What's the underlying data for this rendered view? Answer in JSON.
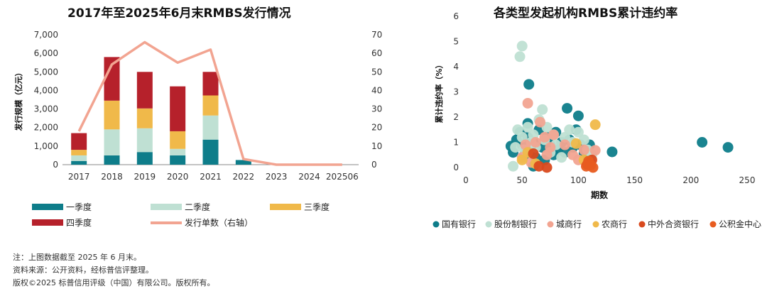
{
  "chart_data": [
    {
      "type": "bar",
      "title": "2017年至2025年6月末RMBS发行情况",
      "ylabel": "发行规模（亿元）",
      "y2label": "发行单数",
      "ylim": [
        0,
        7000
      ],
      "y2lim": [
        0,
        70
      ],
      "y_ticks": [
        "0",
        "1,000",
        "2,000",
        "3,000",
        "4,000",
        "5,000",
        "6,000",
        "7,000"
      ],
      "y2_ticks": [
        "0",
        "10",
        "20",
        "30",
        "40",
        "50",
        "60",
        "70"
      ],
      "categories": [
        "2017",
        "2018",
        "2019",
        "2020",
        "2021",
        "2022",
        "2023",
        "2024",
        "202506"
      ],
      "stacked": true,
      "series": [
        {
          "name": "一季度",
          "color": "#0e7d8a",
          "values": [
            200,
            500,
            680,
            500,
            1350,
            250,
            0,
            0,
            0
          ]
        },
        {
          "name": "二季度",
          "color": "#bfe0d3",
          "values": [
            300,
            1400,
            1280,
            350,
            1300,
            0,
            0,
            0,
            0
          ]
        },
        {
          "name": "三季度",
          "color": "#f0b94a",
          "values": [
            300,
            1550,
            1070,
            950,
            1080,
            0,
            0,
            0,
            0
          ]
        },
        {
          "name": "四季度",
          "color": "#b6212b",
          "values": [
            900,
            2350,
            1970,
            2420,
            1270,
            0,
            0,
            0,
            0
          ]
        }
      ],
      "line_series": {
        "name": "发行单数（右轴）",
        "color": "#f2a491",
        "axis": "right",
        "values": [
          18,
          54,
          66,
          55,
          62,
          3,
          0,
          0,
          0
        ]
      },
      "legend_placement": "bottom"
    },
    {
      "type": "scatter",
      "title": "各类型发起机构RMBS累计违约率",
      "xlabel": "期数",
      "ylabel": "累计违约率（%）",
      "xlim": [
        0,
        250
      ],
      "ylim": [
        0,
        6
      ],
      "x_ticks": [
        "0",
        "50",
        "100",
        "150",
        "200",
        "250"
      ],
      "y_ticks": [
        "0",
        "1",
        "2",
        "3",
        "4",
        "5",
        "6"
      ],
      "series": [
        {
          "name": "国有银行",
          "color": "#0e7d8a",
          "points": [
            [
              40,
              0.85
            ],
            [
              42,
              0.6
            ],
            [
              45,
              1.1
            ],
            [
              48,
              1.4
            ],
            [
              50,
              0.9
            ],
            [
              52,
              0.5
            ],
            [
              55,
              1.2
            ],
            [
              55,
              1.75
            ],
            [
              56,
              3.3
            ],
            [
              58,
              0.7
            ],
            [
              60,
              1.0
            ],
            [
              62,
              0.4
            ],
            [
              65,
              1.5
            ],
            [
              68,
              0.8
            ],
            [
              70,
              0.3
            ],
            [
              72,
              1.2
            ],
            [
              75,
              0.9
            ],
            [
              78,
              0.5
            ],
            [
              80,
              1.4
            ],
            [
              82,
              0.7
            ],
            [
              85,
              1.0
            ],
            [
              88,
              0.6
            ],
            [
              90,
              2.35
            ],
            [
              92,
              1.1
            ],
            [
              95,
              0.8
            ],
            [
              98,
              1.5
            ],
            [
              100,
              2.05
            ],
            [
              102,
              0.9
            ],
            [
              105,
              0.55
            ],
            [
              110,
              0.9
            ],
            [
              130,
              0.62
            ],
            [
              210,
              1.0
            ],
            [
              233,
              0.8
            ],
            [
              60,
              0.05
            ]
          ]
        },
        {
          "name": "股份制银行",
          "color": "#bfe0d3",
          "points": [
            [
              48,
              4.4
            ],
            [
              50,
              4.82
            ],
            [
              42,
              0.05
            ],
            [
              44,
              0.8
            ],
            [
              46,
              1.5
            ],
            [
              50,
              1.2
            ],
            [
              52,
              0.7
            ],
            [
              55,
              1.6
            ],
            [
              58,
              1.0
            ],
            [
              60,
              1.3
            ],
            [
              62,
              0.8
            ],
            [
              65,
              1.9
            ],
            [
              68,
              2.3
            ],
            [
              70,
              1.1
            ],
            [
              72,
              1.6
            ],
            [
              75,
              0.6
            ],
            [
              78,
              1.3
            ],
            [
              80,
              0.9
            ],
            [
              85,
              0.4
            ],
            [
              88,
              1.2
            ],
            [
              92,
              1.5
            ],
            [
              95,
              1.0
            ],
            [
              100,
              1.4
            ],
            [
              105,
              1.1
            ],
            [
              108,
              0.7
            ],
            [
              112,
              0.5
            ]
          ]
        },
        {
          "name": "城商行",
          "color": "#f2a491",
          "points": [
            [
              55,
              2.55
            ],
            [
              50,
              0.4
            ],
            [
              53,
              0.9
            ],
            [
              58,
              0.2
            ],
            [
              62,
              1.0
            ],
            [
              66,
              1.8
            ],
            [
              70,
              1.2
            ],
            [
              72,
              0.5
            ],
            [
              75,
              0.8
            ],
            [
              78,
              1.3
            ],
            [
              88,
              0.9
            ],
            [
              95,
              0.5
            ],
            [
              100,
              0.3
            ],
            [
              105,
              0.7
            ],
            [
              115,
              0.68
            ]
          ]
        },
        {
          "name": "农商行",
          "color": "#f0b94a",
          "points": [
            [
              50,
              0.3
            ],
            [
              55,
              0.6
            ],
            [
              98,
              0.95
            ],
            [
              105,
              0.3
            ],
            [
              115,
              1.7
            ],
            [
              62,
              0.15
            ]
          ]
        },
        {
          "name": "中外合资银行",
          "color": "#d94a1e",
          "points": [
            [
              60,
              0.55
            ],
            [
              65,
              0.05
            ],
            [
              72,
              0.0
            ],
            [
              108,
              0.12
            ],
            [
              110,
              0.2
            ],
            [
              112,
              0.3
            ]
          ]
        },
        {
          "name": "公积金中心",
          "color": "#e85c20",
          "points": [
            [
              107,
              0.05
            ],
            [
              109,
              0.25
            ],
            [
              111,
              0.1
            ],
            [
              113,
              0.0
            ]
          ]
        }
      ],
      "legend_placement": "bottom"
    }
  ],
  "footnotes": {
    "note": "注：上图数据截至 2025 年 6 月末。",
    "source": "资料来源：公开资料，经标普信评整理。",
    "copyright": "版权©2025 标普信用评级（中国）有限公司。版权所有。"
  }
}
